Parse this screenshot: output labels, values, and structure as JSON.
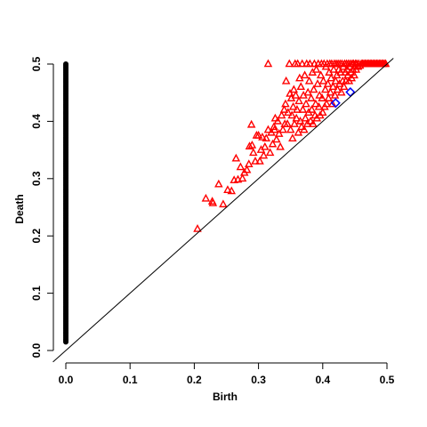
{
  "chart_data": {
    "type": "scatter",
    "title": "",
    "xlabel": "Birth",
    "ylabel": "Death",
    "xlim": [
      0.0,
      0.5
    ],
    "ylim": [
      0.0,
      0.5
    ],
    "x_ticks": [
      "0.0",
      "0.1",
      "0.2",
      "0.3",
      "0.4",
      "0.5"
    ],
    "y_ticks": [
      "0.0",
      "0.1",
      "0.2",
      "0.3",
      "0.4",
      "0.5"
    ],
    "grid": false,
    "legend": "none",
    "diagonal": true,
    "colors": {
      "dim0": "#000000",
      "dim1": "#ff0000",
      "dim2": "#0000ff",
      "diagonal": "#000000"
    },
    "series": [
      {
        "marker": "circle-filled",
        "color": "#000000",
        "x_const": 0.0,
        "y_range": [
          0.015,
          0.5
        ],
        "y_step": 0.0025
      },
      {
        "marker": "triangle-open",
        "color": "#ff0000",
        "points": [
          [
            0.205,
            0.212
          ],
          [
            0.218,
            0.265
          ],
          [
            0.228,
            0.26
          ],
          [
            0.229,
            0.257
          ],
          [
            0.238,
            0.29
          ],
          [
            0.245,
            0.255
          ],
          [
            0.252,
            0.28
          ],
          [
            0.258,
            0.278
          ],
          [
            0.262,
            0.297
          ],
          [
            0.265,
            0.335
          ],
          [
            0.268,
            0.298
          ],
          [
            0.272,
            0.32
          ],
          [
            0.275,
            0.3
          ],
          [
            0.278,
            0.31
          ],
          [
            0.282,
            0.315
          ],
          [
            0.285,
            0.325
          ],
          [
            0.286,
            0.356
          ],
          [
            0.289,
            0.394
          ],
          [
            0.29,
            0.358
          ],
          [
            0.292,
            0.345
          ],
          [
            0.295,
            0.33
          ],
          [
            0.297,
            0.375
          ],
          [
            0.3,
            0.375
          ],
          [
            0.302,
            0.33
          ],
          [
            0.304,
            0.35
          ],
          [
            0.306,
            0.372
          ],
          [
            0.308,
            0.34
          ],
          [
            0.31,
            0.355
          ],
          [
            0.312,
            0.37
          ],
          [
            0.315,
            0.385
          ],
          [
            0.315,
            0.5
          ],
          [
            0.318,
            0.345
          ],
          [
            0.32,
            0.38
          ],
          [
            0.322,
            0.36
          ],
          [
            0.324,
            0.39
          ],
          [
            0.325,
            0.385
          ],
          [
            0.326,
            0.405
          ],
          [
            0.328,
            0.368
          ],
          [
            0.33,
            0.4
          ],
          [
            0.332,
            0.378
          ],
          [
            0.334,
            0.355
          ],
          [
            0.336,
            0.41
          ],
          [
            0.338,
            0.385
          ],
          [
            0.34,
            0.42
          ],
          [
            0.341,
            0.395
          ],
          [
            0.342,
            0.43
          ],
          [
            0.343,
            0.47
          ],
          [
            0.345,
            0.395
          ],
          [
            0.346,
            0.415
          ],
          [
            0.348,
            0.5
          ],
          [
            0.349,
            0.448
          ],
          [
            0.35,
            0.385
          ],
          [
            0.351,
            0.44
          ],
          [
            0.352,
            0.41
          ],
          [
            0.353,
            0.37
          ],
          [
            0.354,
            0.425
          ],
          [
            0.355,
            0.455
          ],
          [
            0.356,
            0.395
          ],
          [
            0.357,
            0.5
          ],
          [
            0.358,
            0.445
          ],
          [
            0.359,
            0.405
          ],
          [
            0.36,
            0.42
          ],
          [
            0.361,
            0.5
          ],
          [
            0.362,
            0.38
          ],
          [
            0.363,
            0.435
          ],
          [
            0.364,
            0.475
          ],
          [
            0.365,
            0.4
          ],
          [
            0.366,
            0.46
          ],
          [
            0.367,
            0.39
          ],
          [
            0.368,
            0.5
          ],
          [
            0.369,
            0.42
          ],
          [
            0.37,
            0.445
          ],
          [
            0.371,
            0.385
          ],
          [
            0.372,
            0.48
          ],
          [
            0.373,
            0.405
          ],
          [
            0.374,
            0.43
          ],
          [
            0.375,
            0.5
          ],
          [
            0.376,
            0.395
          ],
          [
            0.377,
            0.45
          ],
          [
            0.378,
            0.415
          ],
          [
            0.379,
            0.47
          ],
          [
            0.38,
            0.5
          ],
          [
            0.381,
            0.4
          ],
          [
            0.382,
            0.44
          ],
          [
            0.383,
            0.42
          ],
          [
            0.384,
            0.485
          ],
          [
            0.385,
            0.395
          ],
          [
            0.386,
            0.455
          ],
          [
            0.387,
            0.5
          ],
          [
            0.388,
            0.41
          ],
          [
            0.389,
            0.43
          ],
          [
            0.39,
            0.49
          ],
          [
            0.391,
            0.405
          ],
          [
            0.392,
            0.465
          ],
          [
            0.393,
            0.5
          ],
          [
            0.394,
            0.425
          ],
          [
            0.395,
            0.445
          ],
          [
            0.396,
            0.41
          ],
          [
            0.397,
            0.48
          ],
          [
            0.398,
            0.5
          ],
          [
            0.399,
            0.44
          ],
          [
            0.4,
            0.415
          ],
          [
            0.401,
            0.47
          ],
          [
            0.402,
            0.5
          ],
          [
            0.403,
            0.425
          ],
          [
            0.404,
            0.455
          ],
          [
            0.405,
            0.495
          ],
          [
            0.406,
            0.43
          ],
          [
            0.407,
            0.5
          ],
          [
            0.408,
            0.465
          ],
          [
            0.409,
            0.44
          ],
          [
            0.41,
            0.485
          ],
          [
            0.411,
            0.5
          ],
          [
            0.412,
            0.45
          ],
          [
            0.413,
            0.475
          ],
          [
            0.414,
            0.5
          ],
          [
            0.415,
            0.43
          ],
          [
            0.416,
            0.46
          ],
          [
            0.417,
            0.49
          ],
          [
            0.418,
            0.5
          ],
          [
            0.419,
            0.445
          ],
          [
            0.42,
            0.47
          ],
          [
            0.421,
            0.5
          ],
          [
            0.422,
            0.48
          ],
          [
            0.423,
            0.455
          ],
          [
            0.424,
            0.5
          ],
          [
            0.425,
            0.49
          ],
          [
            0.426,
            0.465
          ],
          [
            0.427,
            0.5
          ],
          [
            0.428,
            0.485
          ],
          [
            0.429,
            0.45
          ],
          [
            0.43,
            0.5
          ],
          [
            0.431,
            0.47
          ],
          [
            0.432,
            0.495
          ],
          [
            0.433,
            0.46
          ],
          [
            0.434,
            0.5
          ],
          [
            0.435,
            0.485
          ],
          [
            0.436,
            0.47
          ],
          [
            0.437,
            0.5
          ],
          [
            0.438,
            0.49
          ],
          [
            0.439,
            0.48
          ],
          [
            0.44,
            0.5
          ],
          [
            0.441,
            0.47
          ],
          [
            0.442,
            0.495
          ],
          [
            0.443,
            0.5
          ],
          [
            0.444,
            0.485
          ],
          [
            0.445,
            0.475
          ],
          [
            0.446,
            0.5
          ],
          [
            0.447,
            0.49
          ],
          [
            0.448,
            0.5
          ],
          [
            0.449,
            0.48
          ],
          [
            0.45,
            0.495
          ],
          [
            0.451,
            0.5
          ],
          [
            0.452,
            0.49
          ],
          [
            0.453,
            0.5
          ],
          [
            0.455,
            0.495
          ],
          [
            0.456,
            0.5
          ],
          [
            0.458,
            0.497
          ],
          [
            0.46,
            0.5
          ],
          [
            0.462,
            0.5
          ],
          [
            0.464,
            0.5
          ],
          [
            0.466,
            0.5
          ],
          [
            0.468,
            0.5
          ],
          [
            0.47,
            0.5
          ],
          [
            0.472,
            0.5
          ],
          [
            0.474,
            0.5
          ],
          [
            0.476,
            0.5
          ],
          [
            0.478,
            0.5
          ],
          [
            0.48,
            0.5
          ],
          [
            0.482,
            0.5
          ],
          [
            0.484,
            0.5
          ],
          [
            0.486,
            0.5
          ],
          [
            0.488,
            0.5
          ],
          [
            0.49,
            0.5
          ],
          [
            0.492,
            0.5
          ],
          [
            0.494,
            0.5
          ],
          [
            0.496,
            0.5
          ],
          [
            0.498,
            0.5
          ]
        ]
      },
      {
        "marker": "diamond-open",
        "color": "#0000ff",
        "points": [
          [
            0.42,
            0.432
          ],
          [
            0.443,
            0.451
          ]
        ]
      }
    ]
  }
}
